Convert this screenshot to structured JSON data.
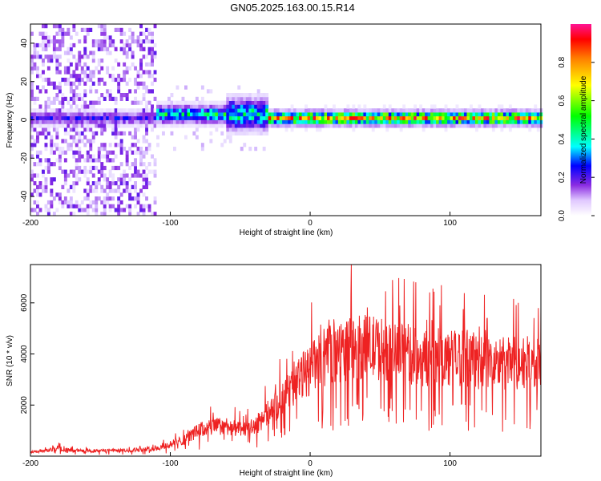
{
  "title": "GN05.2025.163.00.15.R14",
  "colors": {
    "snr_line": "#ee2222",
    "background": "#ffffff",
    "colormap": [
      "#ffffff",
      "#d9c3ff",
      "#8a2be2",
      "#0000ff",
      "#00ffff",
      "#00ff00",
      "#ffff00",
      "#ff7f00",
      "#ff0000",
      "#ff1493"
    ]
  },
  "chart_data": [
    {
      "type": "heatmap",
      "title": "",
      "xlabel": "Height of straight line (km)",
      "ylabel": "Frequency (Hz)",
      "xlim": [
        -200,
        165
      ],
      "ylim": [
        -50,
        50
      ],
      "xticks": [
        -200,
        -100,
        0,
        100
      ],
      "yticks": [
        -40,
        -20,
        0,
        20,
        40
      ],
      "grid": false,
      "colorbar": {
        "label": "Normalized spectral amplitude",
        "range": [
          0,
          1
        ],
        "ticks": [
          0.0,
          0.2,
          0.4,
          0.6,
          0.8
        ]
      },
      "segments": [
        {
          "x_range": [
            -200,
            -110
          ],
          "description_level": "scattered noise",
          "band_center_hz": 0,
          "band_halfwidth_hz": 3,
          "peak_amplitude": 0.35
        },
        {
          "x_range": [
            -110,
            -60
          ],
          "band_center_hz": 2,
          "band_halfwidth_hz": 4,
          "peak_amplitude": 0.6
        },
        {
          "x_range": [
            -60,
            -30
          ],
          "band_center_hz": 2,
          "band_halfwidth_hz": 7,
          "peak_amplitude": 0.6
        },
        {
          "x_range": [
            -30,
            165
          ],
          "band_center_hz": 0,
          "band_halfwidth_hz": 3,
          "peak_amplitude": 0.95
        }
      ]
    },
    {
      "type": "line",
      "title": "",
      "xlabel": "Height of straight line (km)",
      "ylabel": "SNR (10 * v/v)",
      "xlim": [
        -200,
        165
      ],
      "ylim": [
        0,
        7500
      ],
      "xticks": [
        -200,
        -100,
        0,
        100
      ],
      "yticks": [
        2000,
        4000,
        6000
      ],
      "grid": false,
      "series": [
        {
          "x": [
            -200,
            -190,
            -180,
            -170,
            -160,
            -150,
            -140,
            -130,
            -120,
            -110,
            -100,
            -90,
            -80,
            -70,
            -60,
            -50,
            -40,
            -30,
            -20,
            -10,
            0,
            10,
            20,
            30,
            40,
            50,
            60,
            70,
            80,
            90,
            100,
            110,
            120,
            130,
            140,
            150,
            160,
            165
          ],
          "values": [
            150,
            200,
            300,
            220,
            200,
            210,
            230,
            220,
            260,
            300,
            450,
            650,
            1000,
            1150,
            1200,
            1000,
            1150,
            1700,
            2200,
            2900,
            3400,
            3800,
            4100,
            4200,
            4300,
            4200,
            4100,
            4000,
            3800,
            3900,
            3800,
            3900,
            3700,
            3600,
            3600,
            3700,
            3600,
            3500
          ]
        }
      ]
    }
  ]
}
